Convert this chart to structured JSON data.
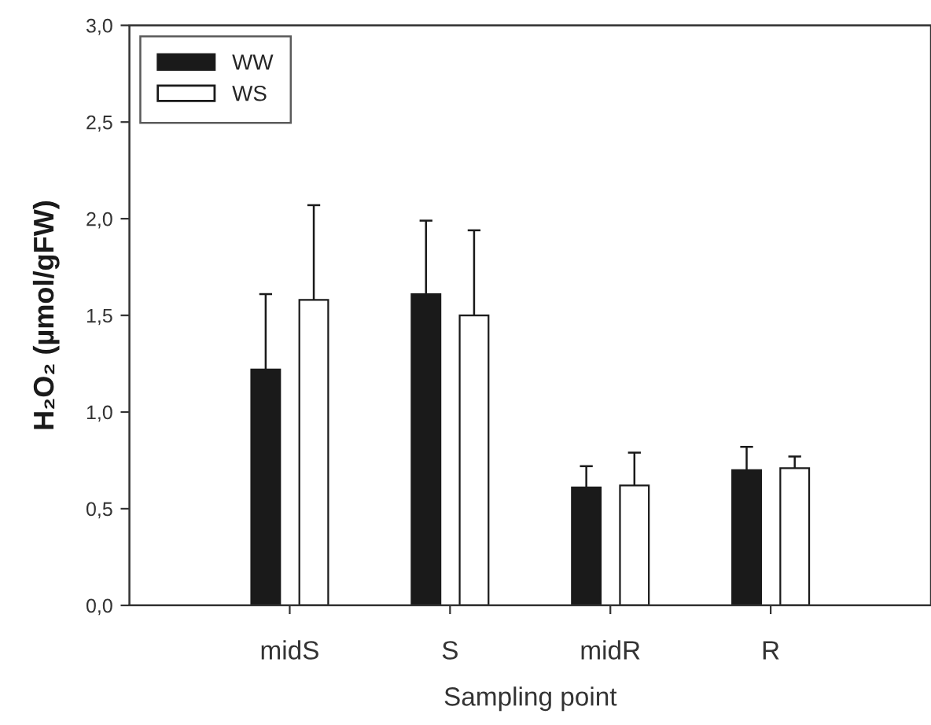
{
  "chart_data": {
    "type": "bar",
    "xlabel": "Sampling point",
    "ylabel": "H₂O₂ (µmol/gFW)",
    "categories": [
      "midS",
      "S",
      "midR",
      "R"
    ],
    "series": [
      {
        "name": "WW",
        "color": "#1a1a1a",
        "values": [
          1.22,
          1.61,
          0.61,
          0.7
        ],
        "errors": [
          [
            1.22,
            1.61
          ],
          [
            1.61,
            1.99
          ],
          [
            0.61,
            0.72
          ],
          [
            0.7,
            0.82
          ]
        ]
      },
      {
        "name": "WS",
        "color": "#ffffff",
        "values": [
          1.58,
          1.5,
          0.62,
          0.71
        ],
        "errors": [
          [
            1.58,
            2.07
          ],
          [
            1.5,
            1.94
          ],
          [
            0.62,
            0.79
          ],
          [
            0.71,
            0.77
          ]
        ]
      }
    ],
    "ylim": [
      0,
      3
    ],
    "yticks": [
      {
        "value": 0,
        "label": "0,0"
      },
      {
        "value": 0.5,
        "label": "0,5"
      },
      {
        "value": 1,
        "label": "1,0"
      },
      {
        "value": 1.5,
        "label": "1,5"
      },
      {
        "value": 2,
        "label": "2,0"
      },
      {
        "value": 2.5,
        "label": "2,5"
      },
      {
        "value": 3,
        "label": "3,0"
      }
    ],
    "grid": false,
    "legend": "top left"
  }
}
